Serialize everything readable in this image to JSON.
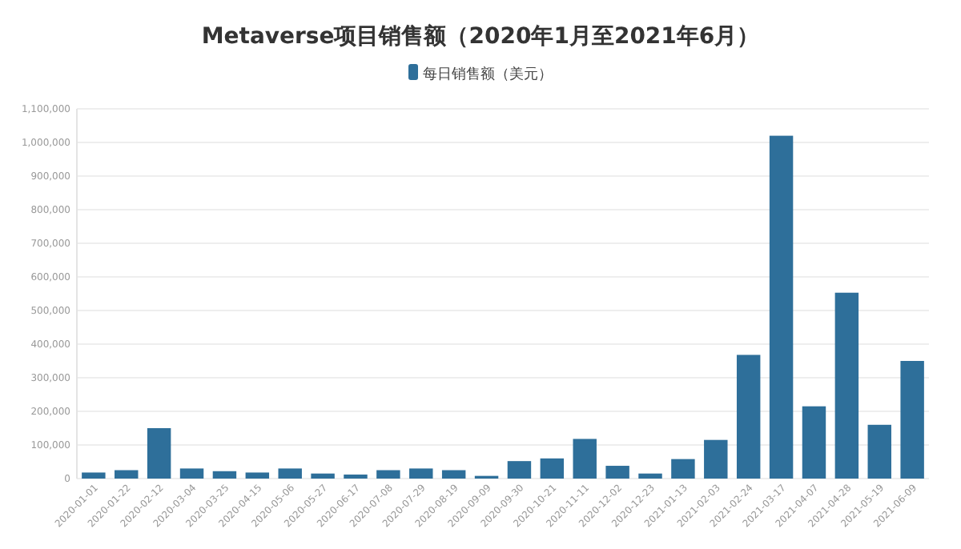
{
  "chart_data": {
    "type": "bar",
    "title": "Metaverse项目销售额（2020年1月至2021年6月）",
    "categories": [
      "2020-01-01",
      "2020-01-22",
      "2020-02-12",
      "2020-03-04",
      "2020-03-25",
      "2020-04-15",
      "2020-05-06",
      "2020-05-27",
      "2020-06-17",
      "2020-07-08",
      "2020-07-29",
      "2020-08-19",
      "2020-09-09",
      "2020-09-30",
      "2020-10-21",
      "2020-11-11",
      "2020-12-02",
      "2020-12-23",
      "2021-01-13",
      "2021-02-03",
      "2021-02-24",
      "2021-03-17",
      "2021-04-07",
      "2021-04-28",
      "2021-05-19",
      "2021-06-09"
    ],
    "series": [
      {
        "name": "每日销售额（美元）",
        "color": "#2e6f9a",
        "values": [
          18000,
          25000,
          150000,
          30000,
          22000,
          18000,
          30000,
          15000,
          12000,
          25000,
          30000,
          25000,
          8000,
          52000,
          60000,
          118000,
          38000,
          15000,
          58000,
          115000,
          368000,
          1020000,
          215000,
          553000,
          160000,
          350000
        ]
      }
    ],
    "ylim": [
      0,
      1100000
    ],
    "yticks": [
      {
        "value": 0,
        "label": "0"
      },
      {
        "value": 100000,
        "label": "100,000"
      },
      {
        "value": 200000,
        "label": "200,000"
      },
      {
        "value": 300000,
        "label": "300,000"
      },
      {
        "value": 400000,
        "label": "400,000"
      },
      {
        "value": 500000,
        "label": "500,000"
      },
      {
        "value": 600000,
        "label": "600,000"
      },
      {
        "value": 700000,
        "label": "700,000"
      },
      {
        "value": 800000,
        "label": "800,000"
      },
      {
        "value": 900000,
        "label": "900,000"
      },
      {
        "value": 1000000,
        "label": "1,000,000"
      },
      {
        "value": 1100000,
        "label": "1,100,000"
      }
    ],
    "grid": "y",
    "legend": "top"
  }
}
